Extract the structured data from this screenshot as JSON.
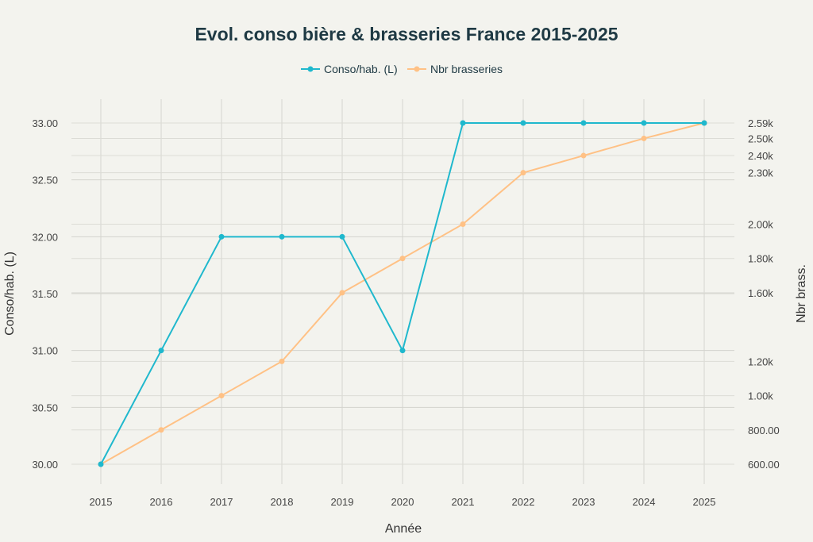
{
  "chart_data": {
    "type": "line",
    "title": "Evol. conso bière & brasseries France 2015-2025",
    "xlabel": "Année",
    "ylabel": "Conso/hab. (L)",
    "y2label": "Nbr brass.",
    "x": [
      "2015",
      "2016",
      "2017",
      "2018",
      "2019",
      "2020",
      "2021",
      "2022",
      "2023",
      "2024",
      "2025"
    ],
    "ylim": [
      30,
      33
    ],
    "y2lim": [
      600,
      2590
    ],
    "yticks": [
      "30.00",
      "30.50",
      "31.00",
      "31.50",
      "32.00",
      "32.50",
      "33.00"
    ],
    "yticks_values": [
      30,
      30.5,
      31,
      31.5,
      32,
      32.5,
      33
    ],
    "y2ticks": [
      "600.00",
      "800.00",
      "1.00k",
      "1.20k",
      "1.60k",
      "1.80k",
      "2.00k",
      "2.30k",
      "2.40k",
      "2.50k",
      "2.59k"
    ],
    "y2ticks_values": [
      600,
      800,
      1000,
      1200,
      1600,
      1800,
      2000,
      2300,
      2400,
      2500,
      2590
    ],
    "grid": true,
    "legend_position": "top-center",
    "series": [
      {
        "name": "Conso/hab. (L)",
        "axis": "left",
        "color": "#1FB8CD",
        "values": [
          30,
          31,
          32,
          32,
          32,
          31,
          33,
          33,
          33,
          33,
          33
        ]
      },
      {
        "name": "Nbr brasseries",
        "axis": "right",
        "color": "#FFC185",
        "values": [
          600,
          800,
          1000,
          1200,
          1600,
          1800,
          2000,
          2300,
          2400,
          2500,
          2590
        ]
      }
    ]
  }
}
